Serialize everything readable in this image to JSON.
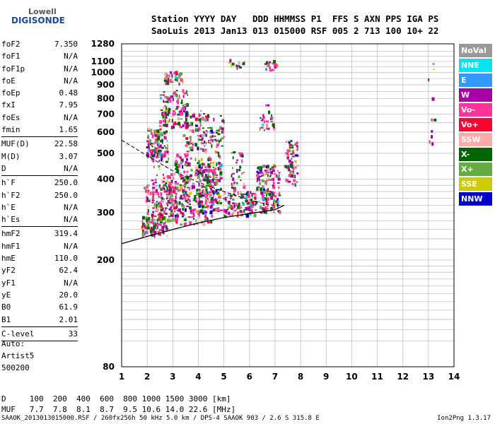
{
  "logo": {
    "line1": "Lowell",
    "line2": "DIGISONDE"
  },
  "header": {
    "line1": "Station YYYY DAY   DDD HHMMSS P1  FFS S AXN PPS IGA PS",
    "line2": "SaoLuis 2013 Jan13 013 015000 RSF 005 2 713 100 10+ 22"
  },
  "params": [
    {
      "k": "foF2",
      "v": "7.350"
    },
    {
      "k": "foF1",
      "v": "N/A"
    },
    {
      "k": "foF1p",
      "v": "N/A"
    },
    {
      "k": "foE",
      "v": "N/A"
    },
    {
      "k": "foEp",
      "v": "0.48"
    },
    {
      "k": "fxI",
      "v": "7.95"
    },
    {
      "k": "foEs",
      "v": "N/A"
    },
    {
      "k": "fmin",
      "v": "1.65",
      "sep": true
    },
    {
      "k": "MUF(D)",
      "v": "22.58"
    },
    {
      "k": "M(D)",
      "v": "3.07"
    },
    {
      "k": "D",
      "v": "N/A",
      "sep": true
    },
    {
      "k": "h`F",
      "v": "250.0"
    },
    {
      "k": "h`F2",
      "v": "250.0"
    },
    {
      "k": "h`E",
      "v": "N/A"
    },
    {
      "k": "h`Es",
      "v": "N/A",
      "sep": true
    },
    {
      "k": "hmF2",
      "v": "319.4"
    },
    {
      "k": "hmF1",
      "v": "N/A"
    },
    {
      "k": "hmE",
      "v": "110.0"
    },
    {
      "k": "yF2",
      "v": "62.4"
    },
    {
      "k": "yF1",
      "v": "N/A"
    },
    {
      "k": "yE",
      "v": "20.0"
    },
    {
      "k": "B0",
      "v": "61.9"
    },
    {
      "k": "B1",
      "v": "2.01",
      "sep": true
    },
    {
      "k": "C-level",
      "v": "33",
      "sep": true
    }
  ],
  "auto": {
    "l1": "Auto:",
    "l2": "Artist5",
    "l3": "500200"
  },
  "dtable": {
    "d_row": "D     100  200  400  600  800 1000 1500 3000 [km]",
    "muf_row": "MUF   7.7  7.8  8.1  8.7  9.5 10.6 14.0 22.6 [MHz]"
  },
  "footer": {
    "left": "SAAOK_2013013015000.RSF / 260fx256h 50 kHz 5.0 km / DPS-4 SAAOK 903 / 2.6 S 315.8 E",
    "right": "Ion2Png 1.3.17"
  },
  "legend": [
    {
      "label": "NoVal",
      "color": "#999999"
    },
    {
      "label": "NNE",
      "color": "#00e5ee"
    },
    {
      "label": "E",
      "color": "#3399ff"
    },
    {
      "label": "W",
      "color": "#aa00aa"
    },
    {
      "label": "Vo-",
      "color": "#ff3399"
    },
    {
      "label": "Vo+",
      "color": "#ff0033"
    },
    {
      "label": "SSW",
      "color": "#ffaaaa"
    },
    {
      "label": "X-",
      "color": "#006600"
    },
    {
      "label": "X+",
      "color": "#66aa44"
    },
    {
      "label": "SSE",
      "color": "#cccc00"
    },
    {
      "label": "NNW",
      "color": "#0000cc"
    }
  ],
  "chart_data": {
    "type": "scatter",
    "title": "",
    "xlabel": "",
    "ylabel": "",
    "xlim": [
      1,
      14
    ],
    "ylim": [
      80,
      1280
    ],
    "y_scale": "log",
    "x_ticks": [
      "1",
      "2",
      "3",
      "4",
      "5",
      "6",
      "7",
      "8",
      "9",
      "10",
      "11",
      "12",
      "13",
      "14"
    ],
    "y_ticks": [
      {
        "v": 80,
        "label": "80"
      },
      {
        "v": 200,
        "label": "200"
      },
      {
        "v": 300,
        "label": "300"
      },
      {
        "v": 400,
        "label": "400"
      },
      {
        "v": 500,
        "label": "500"
      },
      {
        "v": 600,
        "label": "600"
      },
      {
        "v": 700,
        "label": "700"
      },
      {
        "v": 800,
        "label": "800"
      },
      {
        "v": 900,
        "label": "900"
      },
      {
        "v": 1000,
        "label": "1000"
      },
      {
        "v": 1100,
        "label": "1100"
      },
      {
        "v": 1280,
        "label": "1280"
      }
    ],
    "y_grid": [
      100,
      110,
      120,
      130,
      140,
      150,
      160,
      170,
      180,
      190,
      200,
      220,
      240,
      260,
      280,
      300,
      320,
      340,
      360,
      380,
      400,
      450,
      500,
      550,
      600,
      650,
      700,
      750,
      800,
      850,
      900,
      950,
      1000,
      1050,
      1100,
      1150,
      1200,
      1280
    ],
    "grid": true,
    "clusters": [
      {
        "x": [
          1.8,
          2.8
        ],
        "y": [
          245,
          290
        ],
        "density": 90
      },
      {
        "x": [
          1.9,
          3.2
        ],
        "y": [
          270,
          380
        ],
        "density": 140
      },
      {
        "x": [
          2.0,
          2.8
        ],
        "y": [
          480,
          620
        ],
        "density": 120
      },
      {
        "x": [
          2.2,
          3.6
        ],
        "y": [
          300,
          500
        ],
        "density": 160
      },
      {
        "x": [
          2.5,
          3.6
        ],
        "y": [
          620,
          860
        ],
        "density": 110
      },
      {
        "x": [
          2.7,
          3.4
        ],
        "y": [
          900,
          1000
        ],
        "density": 40
      },
      {
        "x": [
          3.3,
          4.6
        ],
        "y": [
          270,
          480
        ],
        "density": 200
      },
      {
        "x": [
          3.4,
          4.4
        ],
        "y": [
          500,
          720
        ],
        "density": 90
      },
      {
        "x": [
          4.0,
          4.9
        ],
        "y": [
          300,
          460
        ],
        "density": 150
      },
      {
        "x": [
          4.4,
          5.0
        ],
        "y": [
          480,
          700
        ],
        "density": 50
      },
      {
        "x": [
          5.0,
          6.3
        ],
        "y": [
          290,
          360
        ],
        "density": 120
      },
      {
        "x": [
          5.3,
          5.8
        ],
        "y": [
          360,
          520
        ],
        "density": 40
      },
      {
        "x": [
          6.3,
          7.2
        ],
        "y": [
          300,
          450
        ],
        "density": 140
      },
      {
        "x": [
          6.4,
          7.0
        ],
        "y": [
          600,
          760
        ],
        "density": 30
      },
      {
        "x": [
          7.4,
          7.9
        ],
        "y": [
          380,
          560
        ],
        "density": 80
      },
      {
        "x": [
          6.6,
          7.1
        ],
        "y": [
          1000,
          1100
        ],
        "density": 20
      },
      {
        "x": [
          5.2,
          5.8
        ],
        "y": [
          1040,
          1110
        ],
        "density": 12
      },
      {
        "x": [
          13.0,
          13.3
        ],
        "y": [
          500,
          1100
        ],
        "density": 10
      }
    ],
    "trace_curve": [
      {
        "x": 1.0,
        "y": 230
      },
      {
        "x": 2.0,
        "y": 245
      },
      {
        "x": 3.0,
        "y": 260
      },
      {
        "x": 4.0,
        "y": 275
      },
      {
        "x": 5.0,
        "y": 288
      },
      {
        "x": 6.0,
        "y": 298
      },
      {
        "x": 7.0,
        "y": 308
      },
      {
        "x": 7.35,
        "y": 320
      }
    ],
    "profile_curve": [
      {
        "x": 1.0,
        "y": 560
      },
      {
        "x": 2.0,
        "y": 490
      },
      {
        "x": 3.0,
        "y": 430
      },
      {
        "x": 4.0,
        "y": 390
      },
      {
        "x": 5.0,
        "y": 360
      },
      {
        "x": 6.0,
        "y": 335
      },
      {
        "x": 6.7,
        "y": 322
      },
      {
        "x": 7.35,
        "y": 319
      }
    ]
  }
}
